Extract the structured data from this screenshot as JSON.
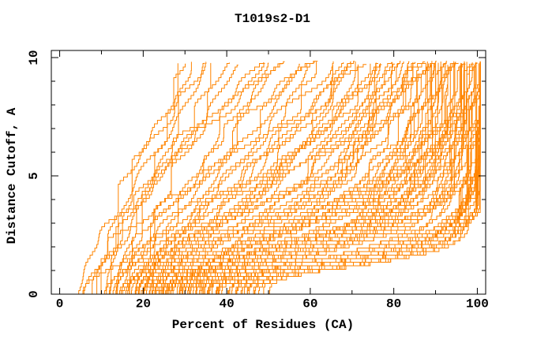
{
  "chart_data": {
    "type": "line",
    "title": "T1019s2-D1",
    "xlabel": "Percent of Residues (CA)",
    "ylabel": "Distance Cutoff, A",
    "xlim": [
      -2,
      102
    ],
    "ylim": [
      0,
      10.3
    ],
    "x_major_ticks": [
      0,
      20,
      40,
      60,
      80,
      100
    ],
    "x_minor_ticks": [
      10,
      30,
      50,
      70,
      90
    ],
    "y_major_ticks": [
      0,
      5,
      10
    ],
    "y_minor_ticks": [
      1,
      2,
      3,
      4,
      6,
      7,
      8,
      9
    ],
    "grid": false,
    "legend": "none",
    "background": "#ffffff",
    "axis_color": "#000000",
    "line_color": "#ff8400",
    "curve_count": 110,
    "curve_model": "staircase GDT curve: percent(d) = x0 + (x1-x0) * ((d^n/(d^n+k)) / (dmax^n/(dmax^n+k))), d = distance cutoff 0..~9.8 A",
    "curves": [
      [
        10,
        29,
        160,
        1.5
      ],
      [
        12,
        31,
        120,
        1.45
      ],
      [
        8,
        33,
        200,
        1.6
      ],
      [
        14,
        34,
        130,
        1.4
      ],
      [
        11,
        36,
        260,
        1.7
      ],
      [
        16,
        38,
        100,
        1.45
      ],
      [
        13,
        41,
        150,
        1.55
      ],
      [
        9,
        44,
        80,
        1.5
      ],
      [
        15,
        46,
        95,
        1.6
      ],
      [
        18,
        48,
        60,
        1.45
      ],
      [
        4,
        50,
        85,
        1.55
      ],
      [
        20,
        52,
        45,
        1.4
      ],
      [
        16,
        54,
        65,
        1.5
      ],
      [
        5,
        56,
        35,
        1.35
      ],
      [
        22,
        58,
        70,
        1.6
      ],
      [
        14,
        60,
        50,
        1.45
      ],
      [
        19,
        62,
        38,
        1.4
      ],
      [
        24,
        64,
        55,
        1.55
      ],
      [
        11,
        65,
        30,
        1.35
      ],
      [
        13,
        66,
        25,
        1.7
      ],
      [
        17,
        67,
        20,
        1.6
      ],
      [
        21,
        68,
        32,
        1.8
      ],
      [
        15,
        69,
        18,
        1.6
      ],
      [
        25,
        70,
        25,
        1.75
      ],
      [
        12,
        71,
        21,
        1.7
      ],
      [
        19,
        72,
        15,
        1.6
      ],
      [
        23,
        73,
        27,
        1.85
      ],
      [
        16,
        74,
        17,
        1.65
      ],
      [
        27,
        75,
        22,
        1.8
      ],
      [
        6,
        76,
        14,
        1.6
      ],
      [
        20,
        77,
        25,
        1.9
      ],
      [
        24,
        78,
        16,
        1.7
      ],
      [
        18,
        79,
        20,
        1.8
      ],
      [
        28,
        80,
        12,
        1.7
      ],
      [
        15,
        80,
        10,
        1.6
      ],
      [
        22,
        81,
        18,
        1.85
      ],
      [
        26,
        82,
        12,
        1.75
      ],
      [
        17,
        82,
        20,
        1.9
      ],
      [
        30,
        83,
        15,
        1.85
      ],
      [
        19,
        83,
        11,
        1.7
      ],
      [
        23,
        84,
        16,
        1.85
      ],
      [
        27,
        84,
        10,
        1.75
      ],
      [
        21,
        85,
        12,
        1.8
      ],
      [
        25,
        85,
        17,
        1.95
      ],
      [
        18,
        86,
        9,
        1.9
      ],
      [
        29,
        86,
        12,
        2.0
      ],
      [
        22,
        87,
        8,
        1.9
      ],
      [
        33,
        87,
        14,
        2.2
      ],
      [
        26,
        88,
        10,
        2.05
      ],
      [
        19,
        88,
        7,
        1.85
      ],
      [
        31,
        89,
        12,
        2.15
      ],
      [
        24,
        89,
        8,
        1.95
      ],
      [
        35,
        90,
        10,
        2.2
      ],
      [
        21,
        90,
        6.5,
        1.9
      ],
      [
        28,
        90,
        11,
        2.15
      ],
      [
        38,
        91,
        9,
        2.2
      ],
      [
        25,
        91,
        7,
        2.0
      ],
      [
        32,
        91,
        10,
        2.15
      ],
      [
        20,
        92,
        5.5,
        1.9
      ],
      [
        36,
        92,
        8,
        2.2
      ],
      [
        29,
        92,
        10.5,
        2.25
      ],
      [
        42,
        93,
        7.5,
        2.3
      ],
      [
        26,
        93,
        6,
        2.0
      ],
      [
        33,
        93,
        9,
        2.2
      ],
      [
        23,
        94,
        5,
        1.95
      ],
      [
        39,
        94,
        7,
        2.3
      ],
      [
        30,
        94,
        9.5,
        2.3
      ],
      [
        45,
        94,
        6.5,
        2.35
      ],
      [
        27,
        95,
        5.5,
        2.05
      ],
      [
        35,
        95,
        8,
        2.35
      ],
      [
        31,
        95,
        7,
        2.2
      ],
      [
        41,
        96,
        6,
        2.35
      ],
      [
        24,
        96,
        4.5,
        2.0
      ],
      [
        37,
        96,
        7.5,
        2.4
      ],
      [
        28,
        96,
        8.5,
        2.3
      ],
      [
        44,
        97,
        5.5,
        2.4
      ],
      [
        33,
        97,
        6.5,
        2.35
      ],
      [
        40,
        97,
        4.8,
        2.35
      ],
      [
        26,
        97,
        6,
        2.2
      ],
      [
        36,
        98,
        4.5,
        2.4
      ],
      [
        30,
        98,
        6.2,
        2.35
      ],
      [
        47,
        98,
        4,
        2.45
      ],
      [
        34,
        98,
        5.2,
        2.4
      ],
      [
        42,
        99,
        4.2,
        2.5
      ],
      [
        29,
        99,
        5.5,
        2.4
      ],
      [
        38,
        99,
        3.8,
        2.5
      ],
      [
        45,
        99,
        3.2,
        2.5
      ],
      [
        32,
        99,
        4.6,
        2.45
      ],
      [
        36,
        99,
        5.8,
        2.55
      ],
      [
        40,
        100,
        2.6,
        2.9
      ],
      [
        35,
        100,
        3.2,
        2.8
      ],
      [
        48,
        100,
        2.1,
        3.0
      ],
      [
        31,
        100,
        2.9,
        2.7
      ],
      [
        43,
        100,
        1.9,
        3.0
      ],
      [
        37,
        100,
        2.4,
        2.8
      ],
      [
        50,
        100,
        2.0,
        3.1
      ],
      [
        34,
        100,
        2.7,
        2.7
      ],
      [
        46,
        100,
        2.3,
        3.0
      ],
      [
        39,
        100,
        1.8,
        2.9
      ],
      [
        42,
        100,
        2.2,
        2.95
      ],
      [
        33,
        100,
        1.6,
        2.8
      ],
      [
        47,
        100,
        2.0,
        3.1
      ],
      [
        36,
        100,
        2.5,
        2.9
      ],
      [
        44,
        100,
        1.7,
        3.0
      ],
      [
        38,
        100,
        2.2,
        2.85
      ],
      [
        41,
        100,
        1.5,
        3.0
      ],
      [
        49,
        100,
        1.9,
        3.15
      ],
      [
        35,
        100,
        2.3,
        2.9
      ],
      [
        45,
        100,
        1.75,
        3.05
      ],
      [
        30,
        100,
        2.05,
        2.75
      ]
    ]
  }
}
